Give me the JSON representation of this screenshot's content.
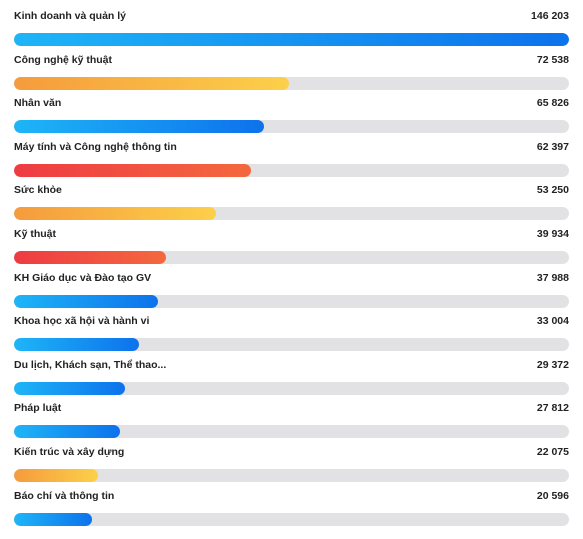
{
  "chart_data": {
    "type": "bar",
    "orientation": "horizontal",
    "categories": [
      "Kinh doanh và quản lý",
      "Công nghệ kỹ thuật",
      "Nhân văn",
      "Máy tính và Công nghệ thông tin",
      "Sức khỏe",
      "Kỹ thuật",
      "KH Giáo dục và Đào tạo GV",
      "Khoa học xã hội và hành vi",
      "Du lịch, Khách sạn, Thể thao...",
      "Pháp luật",
      "Kiến trúc và xây dựng",
      "Báo chí và thông tin"
    ],
    "values": [
      146203,
      72538,
      65826,
      62397,
      53250,
      39934,
      37988,
      33004,
      29372,
      27812,
      22075,
      20596
    ],
    "value_labels": [
      "146 203",
      "72 538",
      "65 826",
      "62 397",
      "53 250",
      "39 934",
      "37 988",
      "33 004",
      "29 372",
      "27 812",
      "22 075",
      "20 596"
    ],
    "bar_colors": [
      "blue",
      "orange",
      "blue",
      "red",
      "orange",
      "red",
      "blue",
      "blue",
      "blue",
      "blue",
      "orange",
      "blue"
    ],
    "max": 146203,
    "grid": false,
    "legend": "none"
  },
  "colors": {
    "blue": "#0d72ec",
    "orange": "#f59b3c",
    "red": "#ee3b43",
    "track": "#e2e2e5",
    "text": "#222222"
  }
}
